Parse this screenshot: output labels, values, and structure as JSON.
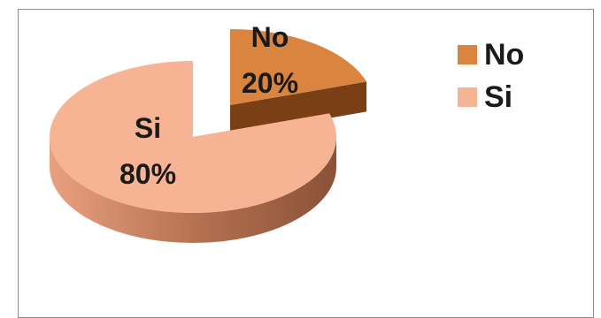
{
  "chart_data": {
    "type": "pie",
    "categories": [
      "No",
      "Si"
    ],
    "values": [
      20,
      80
    ],
    "labels": [
      {
        "name": "No",
        "percent": "20%"
      },
      {
        "name": "Si",
        "percent": "80%"
      }
    ],
    "legend": {
      "placement": "top-right",
      "entries": [
        {
          "label": "No",
          "color": "#D9843F"
        },
        {
          "label": "Si",
          "color": "#F6B494"
        }
      ]
    },
    "colors": {
      "No": "#D9843F",
      "No_side": "#7A3F14",
      "Si": "#F6B494",
      "Si_side": "#B26E4F"
    }
  }
}
